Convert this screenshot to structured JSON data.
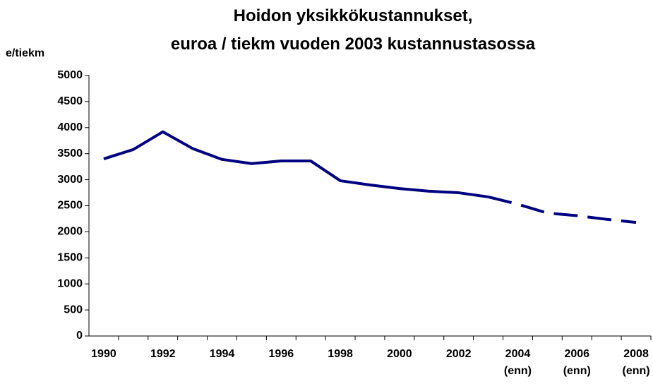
{
  "chart_data": {
    "type": "line",
    "title": [
      "Hoidon yksikkökustannukset,",
      "euroa / tiekm vuoden 2003 kustannustasossa"
    ],
    "y_label": "e/tiekm",
    "categories": [
      "1990",
      null,
      "1992",
      null,
      "1994",
      null,
      "1996",
      null,
      "1998",
      null,
      "2000",
      null,
      "2002",
      null,
      "2004 (enn)",
      null,
      "2006 (enn)",
      null,
      "2008 (enn)"
    ],
    "series": [
      {
        "color": "#000080",
        "dash": false,
        "values": [
          3400,
          3580,
          3920,
          3600,
          3390,
          3310,
          3360,
          3360,
          2980,
          2900,
          2830,
          2780,
          2750,
          2670,
          null,
          null,
          null,
          null,
          null
        ]
      },
      {
        "color": "#000080",
        "dash": true,
        "values": [
          null,
          null,
          null,
          null,
          null,
          null,
          null,
          null,
          null,
          null,
          null,
          null,
          null,
          2670,
          2530,
          2360,
          2310,
          2240,
          2180
        ]
      }
    ],
    "ylim": [
      0,
      5000
    ],
    "yticks": [
      0,
      500,
      1000,
      1500,
      2000,
      2500,
      3000,
      3500,
      4000,
      4500,
      5000
    ],
    "grid": false
  }
}
